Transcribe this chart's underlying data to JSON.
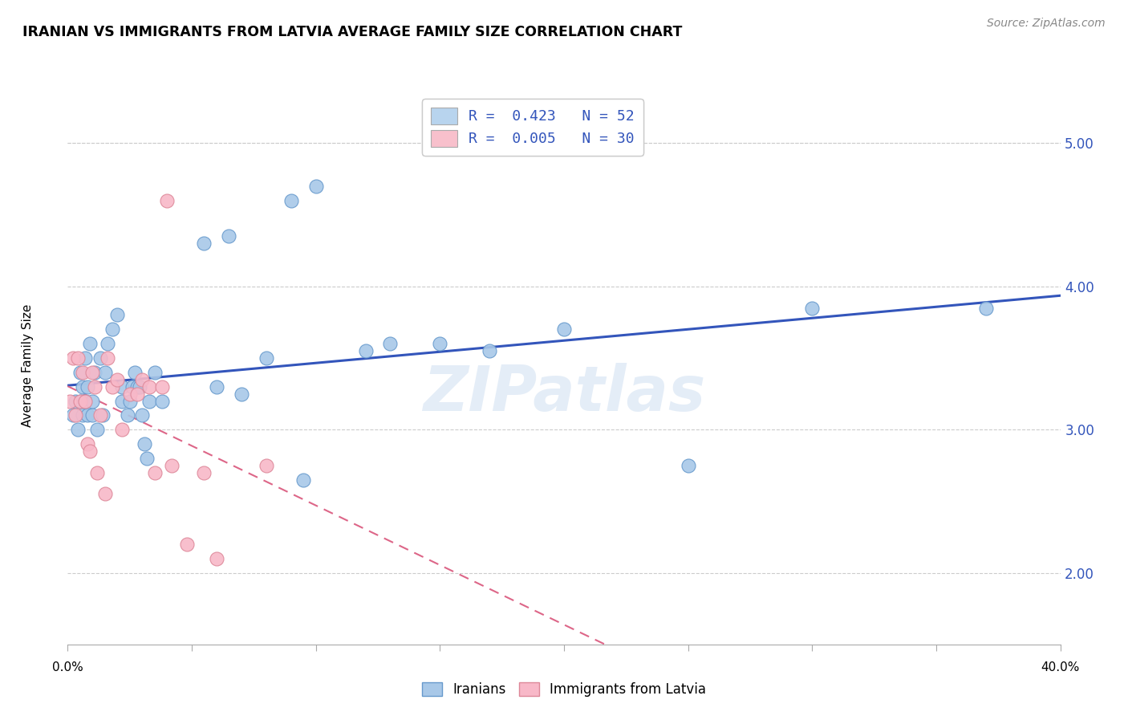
{
  "title": "IRANIAN VS IMMIGRANTS FROM LATVIA AVERAGE FAMILY SIZE CORRELATION CHART",
  "source": "Source: ZipAtlas.com",
  "ylabel": "Average Family Size",
  "y_ticks": [
    2.0,
    3.0,
    4.0,
    5.0
  ],
  "x_range": [
    0.0,
    0.4
  ],
  "y_range": [
    1.5,
    5.4
  ],
  "watermark": "ZIPatlas",
  "iranians_color": "#a8c8e8",
  "latvia_color": "#f8b8c8",
  "iranians_edge": "#6699cc",
  "latvia_edge": "#dd8899",
  "trend_iranian_color": "#3355bb",
  "trend_latvia_color": "#dd6688",
  "iranians_x": [
    0.002,
    0.003,
    0.004,
    0.005,
    0.005,
    0.006,
    0.006,
    0.007,
    0.007,
    0.008,
    0.008,
    0.009,
    0.01,
    0.01,
    0.011,
    0.012,
    0.013,
    0.014,
    0.015,
    0.016,
    0.018,
    0.02,
    0.022,
    0.022,
    0.024,
    0.025,
    0.026,
    0.027,
    0.028,
    0.029,
    0.03,
    0.031,
    0.032,
    0.033,
    0.035,
    0.038,
    0.055,
    0.06,
    0.065,
    0.07,
    0.08,
    0.09,
    0.095,
    0.1,
    0.12,
    0.13,
    0.15,
    0.17,
    0.2,
    0.25,
    0.3,
    0.37
  ],
  "iranians_y": [
    3.1,
    3.2,
    3.0,
    3.2,
    3.4,
    3.1,
    3.3,
    3.2,
    3.5,
    3.1,
    3.3,
    3.6,
    3.1,
    3.2,
    3.4,
    3.0,
    3.5,
    3.1,
    3.4,
    3.6,
    3.7,
    3.8,
    3.2,
    3.3,
    3.1,
    3.2,
    3.3,
    3.4,
    3.3,
    3.3,
    3.1,
    2.9,
    2.8,
    3.2,
    3.4,
    3.2,
    4.3,
    3.3,
    4.35,
    3.25,
    3.5,
    4.6,
    2.65,
    4.7,
    3.55,
    3.6,
    3.6,
    3.55,
    3.7,
    2.75,
    3.85,
    3.85
  ],
  "latvia_x": [
    0.001,
    0.002,
    0.003,
    0.004,
    0.005,
    0.006,
    0.007,
    0.008,
    0.009,
    0.01,
    0.011,
    0.012,
    0.013,
    0.015,
    0.016,
    0.018,
    0.02,
    0.022,
    0.025,
    0.028,
    0.03,
    0.033,
    0.035,
    0.038,
    0.04,
    0.042,
    0.048,
    0.055,
    0.06,
    0.08
  ],
  "latvia_y": [
    3.2,
    3.5,
    3.1,
    3.5,
    3.2,
    3.4,
    3.2,
    2.9,
    2.85,
    3.4,
    3.3,
    2.7,
    3.1,
    2.55,
    3.5,
    3.3,
    3.35,
    3.0,
    3.25,
    3.25,
    3.35,
    3.3,
    2.7,
    3.3,
    4.6,
    2.75,
    2.2,
    2.7,
    2.1,
    2.75
  ],
  "legend_label1": "R =  0.423   N = 52",
  "legend_label2": "R =  0.005   N = 30",
  "legend_color1": "#b8d4ee",
  "legend_color2": "#f8c0cc",
  "bottom_legend1": "Iranians",
  "bottom_legend2": "Immigrants from Latvia"
}
